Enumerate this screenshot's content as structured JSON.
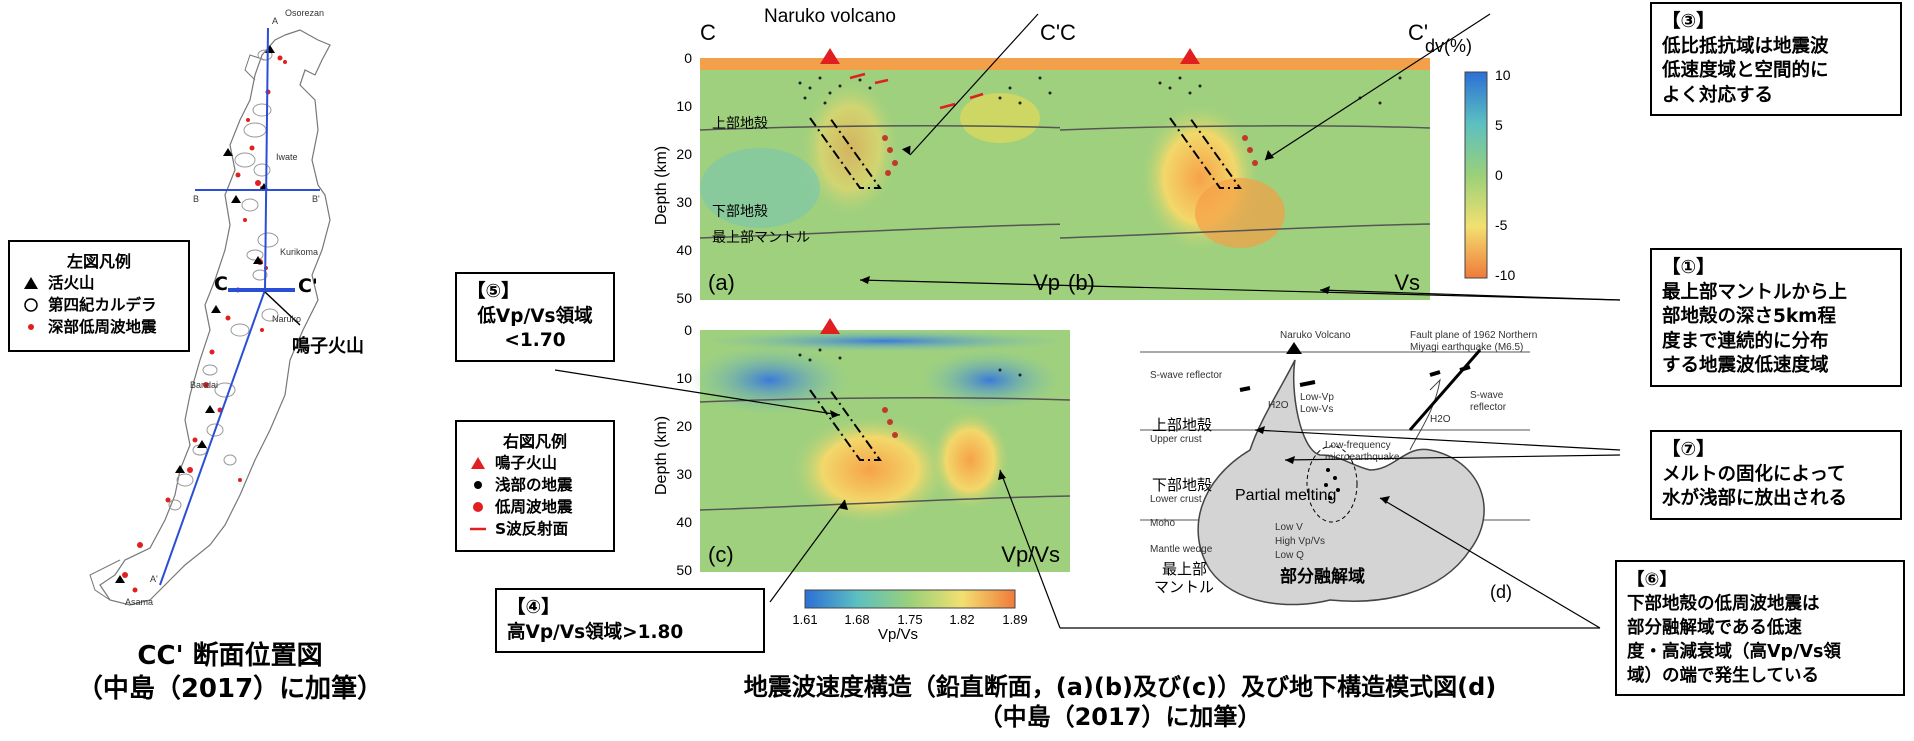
{
  "left_map": {
    "legend": {
      "title": "左図凡例",
      "items": [
        {
          "label": "活火山"
        },
        {
          "label": "第四紀カルデラ"
        },
        {
          "label": "深部低周波地震"
        }
      ]
    },
    "place_labels": {
      "osorezan": "Osorezan",
      "iwate": "Iwate",
      "kurikoma": "Kurikoma",
      "naruko": "Naruko",
      "bandai": "Bandai",
      "asama": "Asama",
      "a": "A",
      "a_prime": "A'",
      "b": "B",
      "b_prime": "B'"
    },
    "section_c": "C",
    "section_c_prime": "C'",
    "naruko_label_jp": "鳴子火山",
    "caption_line1": "CC' 断面位置図",
    "caption_line2": "（中島（2017）に加筆）"
  },
  "right_legend": {
    "title": "右図凡例",
    "items": [
      {
        "label": "鳴子火山",
        "color": "#e02020"
      },
      {
        "label": "浅部の地震",
        "color": "#000000"
      },
      {
        "label": "低周波地震",
        "color": "#e02020"
      },
      {
        "label": "S波反射面",
        "color": "#e02020"
      }
    ]
  },
  "sections": {
    "volcano_title": "Naruko volcano",
    "c": "C",
    "c_prime": "C'",
    "depth_axis_label": "Depth (km)",
    "depth_ticks": [
      "0",
      "10",
      "20",
      "30",
      "40",
      "50"
    ],
    "upper_crust_jp": "上部地殻",
    "lower_crust_jp": "下部地殻",
    "uppermost_mantle_jp": "最上部マントル",
    "panels": [
      {
        "tag": "(a)",
        "quantity": "Vp"
      },
      {
        "tag": "(b)",
        "quantity": "Vs"
      },
      {
        "tag": "(c)",
        "quantity": "Vp/Vs"
      }
    ],
    "dv_colorbar": {
      "label": "dv(%)",
      "ticks": [
        "10",
        "5",
        "0",
        "-5",
        "-10"
      ]
    },
    "vpvs_colorbar": {
      "label": "Vp/Vs",
      "ticks": [
        "1.61",
        "1.68",
        "1.75",
        "1.82",
        "1.89"
      ]
    }
  },
  "schematic": {
    "naruko_volcano": "Naruko Volcano",
    "fault_plane": "Fault plane of 1962 Northern",
    "fault_plane_2": "Miyagi earthquake (M6.5)",
    "s_wave_reflector": "S-wave reflector",
    "s_wave_right": "S-wave",
    "reflector_right": "reflector",
    "h2o": "H2O",
    "low_vp": "Low-Vp",
    "low_vs": "Low-Vs",
    "upper_crust_jp": "上部地殻",
    "upper_crust_en": "Upper crust",
    "low_freq": "Low-frequency",
    "microearthquake": "microearthquake",
    "lower_crust_jp": "下部地殻",
    "lower_crust_en": "Lower crust",
    "partial_melting": "Partial melting",
    "moho": "Moho",
    "low_v": "Low V",
    "high_vpvs": "High Vp/Vs",
    "low_q": "Low Q",
    "mantle_wedge": "Mantle wedge",
    "mantle_jp_1": "最上部",
    "mantle_jp_2": "マントル",
    "partial_melt_jp": "部分融解域",
    "tag": "(d)"
  },
  "notes": {
    "n3": {
      "num": "【③】",
      "lines": [
        "低比抵抗域は地震波",
        "低速度域と空間的に",
        "よく対応する"
      ]
    },
    "n1": {
      "num": "【①】",
      "lines": [
        "最上部マントルから上",
        "部地殻の深さ5km程",
        "度まで連続的に分布",
        "する地震波低速度域"
      ]
    },
    "n5": {
      "num": "【⑤】",
      "lines": [
        "低Vp/Vs領域",
        "<1.70"
      ]
    },
    "n7": {
      "num": "【⑦】",
      "lines": [
        "メルトの固化によって",
        "水が浅部に放出される"
      ]
    },
    "n6": {
      "num": "【⑥】",
      "lines": [
        "下部地殻の低周波地震は",
        "部分融解域である低速",
        "度・高減衰域（高Vp/Vs領",
        "域）の端で発生している"
      ]
    },
    "n4": {
      "num": "【④】",
      "lines": [
        "高Vp/Vs領域>1.80"
      ]
    }
  },
  "bottom_caption": {
    "line1": "地震波速度構造（鉛直断面，(a)(b)及び(c)）及び地下構造模式図(d)",
    "line2": "（中島（2017）に加筆）"
  },
  "colors": {
    "red": "#e02020",
    "blue_line": "#2a4fd6"
  }
}
